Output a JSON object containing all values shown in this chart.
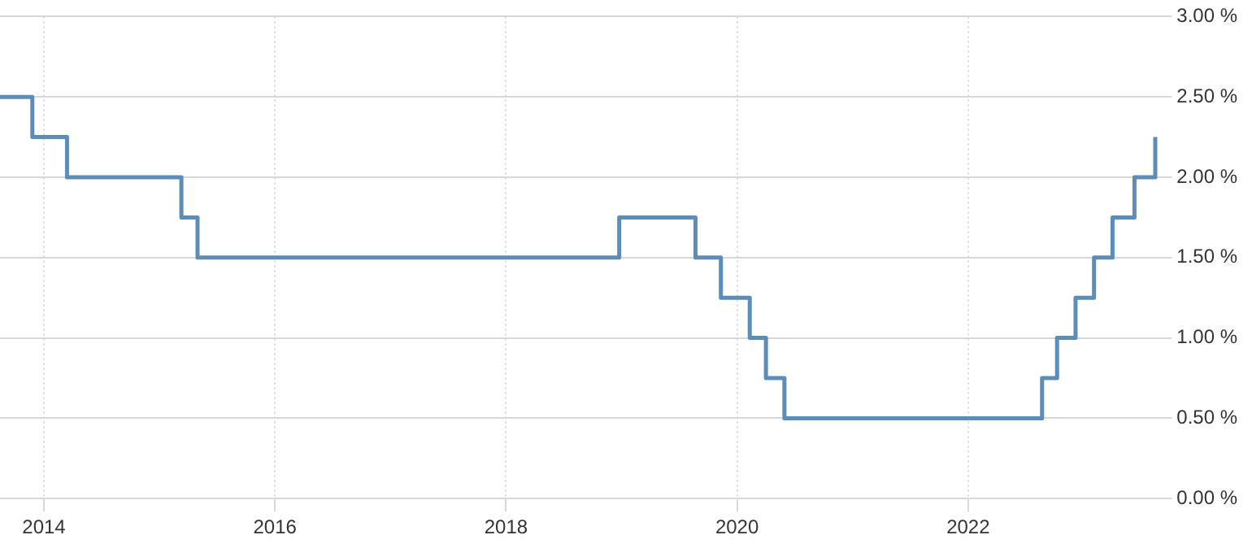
{
  "chart_data": {
    "type": "step",
    "x": [
      2013.62,
      2013.9,
      2014.2,
      2015.19,
      2015.33,
      2018.98,
      2019.64,
      2019.86,
      2020.11,
      2020.25,
      2020.41,
      2022.64,
      2022.77,
      2022.93,
      2023.09,
      2023.25,
      2023.44,
      2023.62
    ],
    "series": [
      {
        "color": "#5b8db8",
        "values": [
          2.5,
          2.25,
          2.0,
          1.75,
          1.5,
          1.75,
          1.5,
          1.25,
          1.0,
          0.75,
          0.5,
          0.75,
          1.0,
          1.25,
          1.5,
          1.75,
          2.0,
          2.25
        ]
      }
    ],
    "xlim": [
      2013.62,
      2023.65
    ],
    "xticks": [
      2014,
      2016,
      2018,
      2020,
      2022
    ],
    "ylim": [
      0,
      3
    ],
    "yticks": [
      {
        "value": 0,
        "label": "0.00 %"
      },
      {
        "value": 0.5,
        "label": "0.50 %"
      },
      {
        "value": 1,
        "label": "1.00 %"
      },
      {
        "value": 1.5,
        "label": "1.50 %"
      },
      {
        "value": 2,
        "label": "2.00 %"
      },
      {
        "value": 2.5,
        "label": "2.50 %"
      },
      {
        "value": 3,
        "label": "3.00 %"
      }
    ],
    "grid": true,
    "legend": false,
    "line_style": "solid",
    "marker": "none"
  }
}
